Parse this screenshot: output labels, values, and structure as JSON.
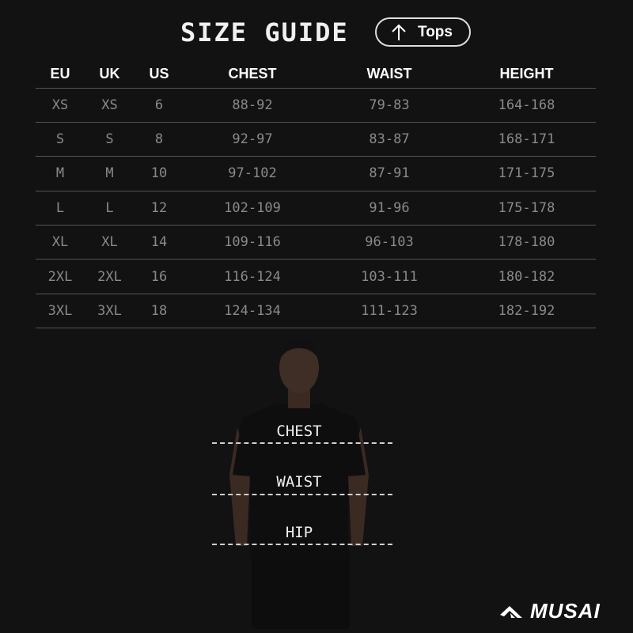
{
  "title": "SIZE GUIDE",
  "category_button": {
    "label": "Tops",
    "icon": "arrow-up-icon"
  },
  "table": {
    "headers": [
      "EU",
      "UK",
      "US",
      "CHEST",
      "WAIST",
      "HEIGHT"
    ],
    "rows": [
      [
        "XS",
        "XS",
        "6",
        "88-92",
        "79-83",
        "164-168"
      ],
      [
        "S",
        "S",
        "8",
        "92-97",
        "83-87",
        "168-171"
      ],
      [
        "M",
        "M",
        "10",
        "97-102",
        "87-91",
        "171-175"
      ],
      [
        "L",
        "L",
        "12",
        "102-109",
        "91-96",
        "175-178"
      ],
      [
        "XL",
        "XL",
        "14",
        "109-116",
        "96-103",
        "178-180"
      ],
      [
        "2XL",
        "2XL",
        "16",
        "116-124",
        "103-111",
        "180-182"
      ],
      [
        "3XL",
        "3XL",
        "18",
        "124-134",
        "111-123",
        "182-192"
      ]
    ]
  },
  "measurements": {
    "chest": "CHEST",
    "waist": "WAIST",
    "hip": "HIP"
  },
  "brand": {
    "name": "MUSAI"
  }
}
